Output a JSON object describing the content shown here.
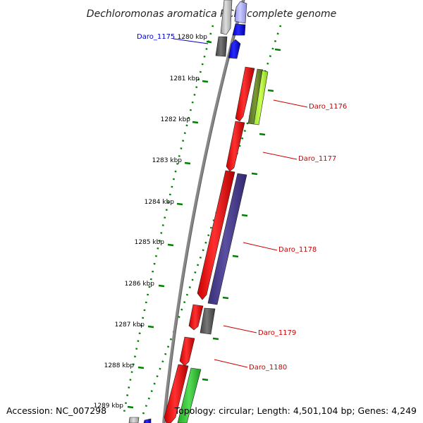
{
  "title": "Dechloromonas aromatica RCB, complete genome",
  "accession_text": "Accession: NC_007298",
  "summary_text": "Topology: circular; Length: 4,501,104 bp; Genes: 4,249",
  "ticks": [
    "1280 kbp",
    "1281 kbp",
    "1282 kbp",
    "1283 kbp",
    "1284 kbp",
    "1285 kbp",
    "1286 kbp",
    "1287 kbp",
    "1288 kbp",
    "1289 kbp"
  ],
  "gene_labels": [
    {
      "name": "Daro_1175",
      "color": "#0000cc"
    },
    {
      "name": "Daro_1176",
      "color": "#cc0000"
    },
    {
      "name": "Daro_1177",
      "color": "#cc0000"
    },
    {
      "name": "Daro_1178",
      "color": "#cc0000"
    },
    {
      "name": "Daro_1179",
      "color": "#cc0000"
    },
    {
      "name": "Daro_1180",
      "color": "#cc0000"
    }
  ],
  "colors": {
    "backbone": "#888888",
    "tick_green": "#008000",
    "cds_red": "#ff0000",
    "cds_blue": "#0000ff",
    "cds_gray": "#666666",
    "cds_light_gray": "#bbbbbb",
    "cds_slate": "#4a3f8f",
    "cds_olive": "#6b8e23",
    "cds_lime": "#b3ff33",
    "cds_green": "#33cc33",
    "label_blue": "#0000cc",
    "label_red": "#cc0000"
  }
}
